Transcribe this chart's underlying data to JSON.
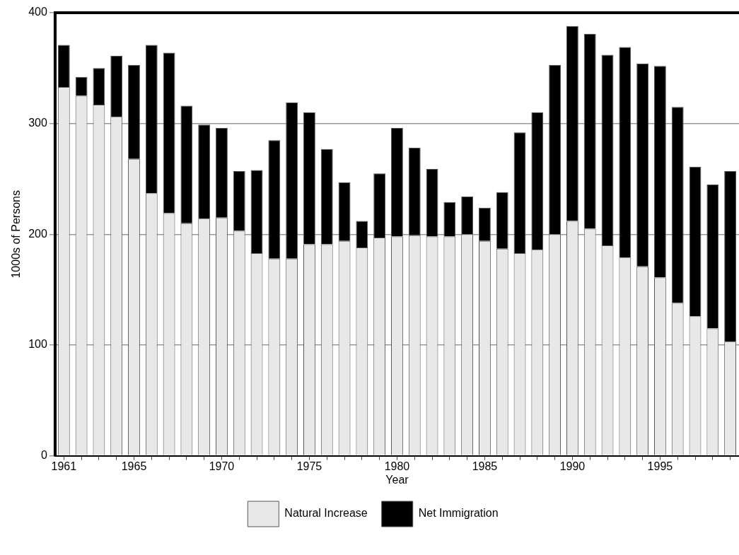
{
  "chart_data": {
    "type": "bar",
    "stacked": true,
    "xlabel": "Year",
    "ylabel": "1000s of Persons",
    "categories": [
      "1961",
      null,
      null,
      null,
      "1965",
      null,
      null,
      null,
      null,
      "1970",
      null,
      null,
      null,
      null,
      "1975",
      null,
      null,
      null,
      null,
      "1980",
      null,
      null,
      null,
      null,
      "1985",
      null,
      null,
      null,
      null,
      "1990",
      null,
      null,
      null,
      null,
      "1995",
      null,
      null,
      null,
      null
    ],
    "series": [
      {
        "name": "Natural Increase",
        "color": "#e8e8e8",
        "values": [
          333,
          325,
          317,
          306,
          268,
          237,
          219,
          210,
          214,
          215,
          203,
          183,
          178,
          178,
          191,
          191,
          194,
          188,
          197,
          198,
          199,
          198,
          198,
          200,
          194,
          187,
          183,
          186,
          200,
          212,
          205,
          190,
          179,
          171,
          161,
          138,
          126,
          115,
          103
        ]
      },
      {
        "name": "Net Immigration",
        "color": "#000000",
        "values": [
          38,
          17,
          33,
          55,
          85,
          134,
          145,
          106,
          85,
          81,
          54,
          75,
          107,
          141,
          119,
          86,
          53,
          24,
          58,
          98,
          79,
          61,
          31,
          34,
          30,
          51,
          109,
          124,
          153,
          176,
          176,
          172,
          190,
          183,
          191,
          177,
          135,
          130,
          154
        ]
      }
    ],
    "ylim": [
      0,
      400
    ],
    "yticks": [
      0,
      100,
      200,
      300,
      400
    ],
    "grid": "y",
    "legend": "bottom"
  }
}
